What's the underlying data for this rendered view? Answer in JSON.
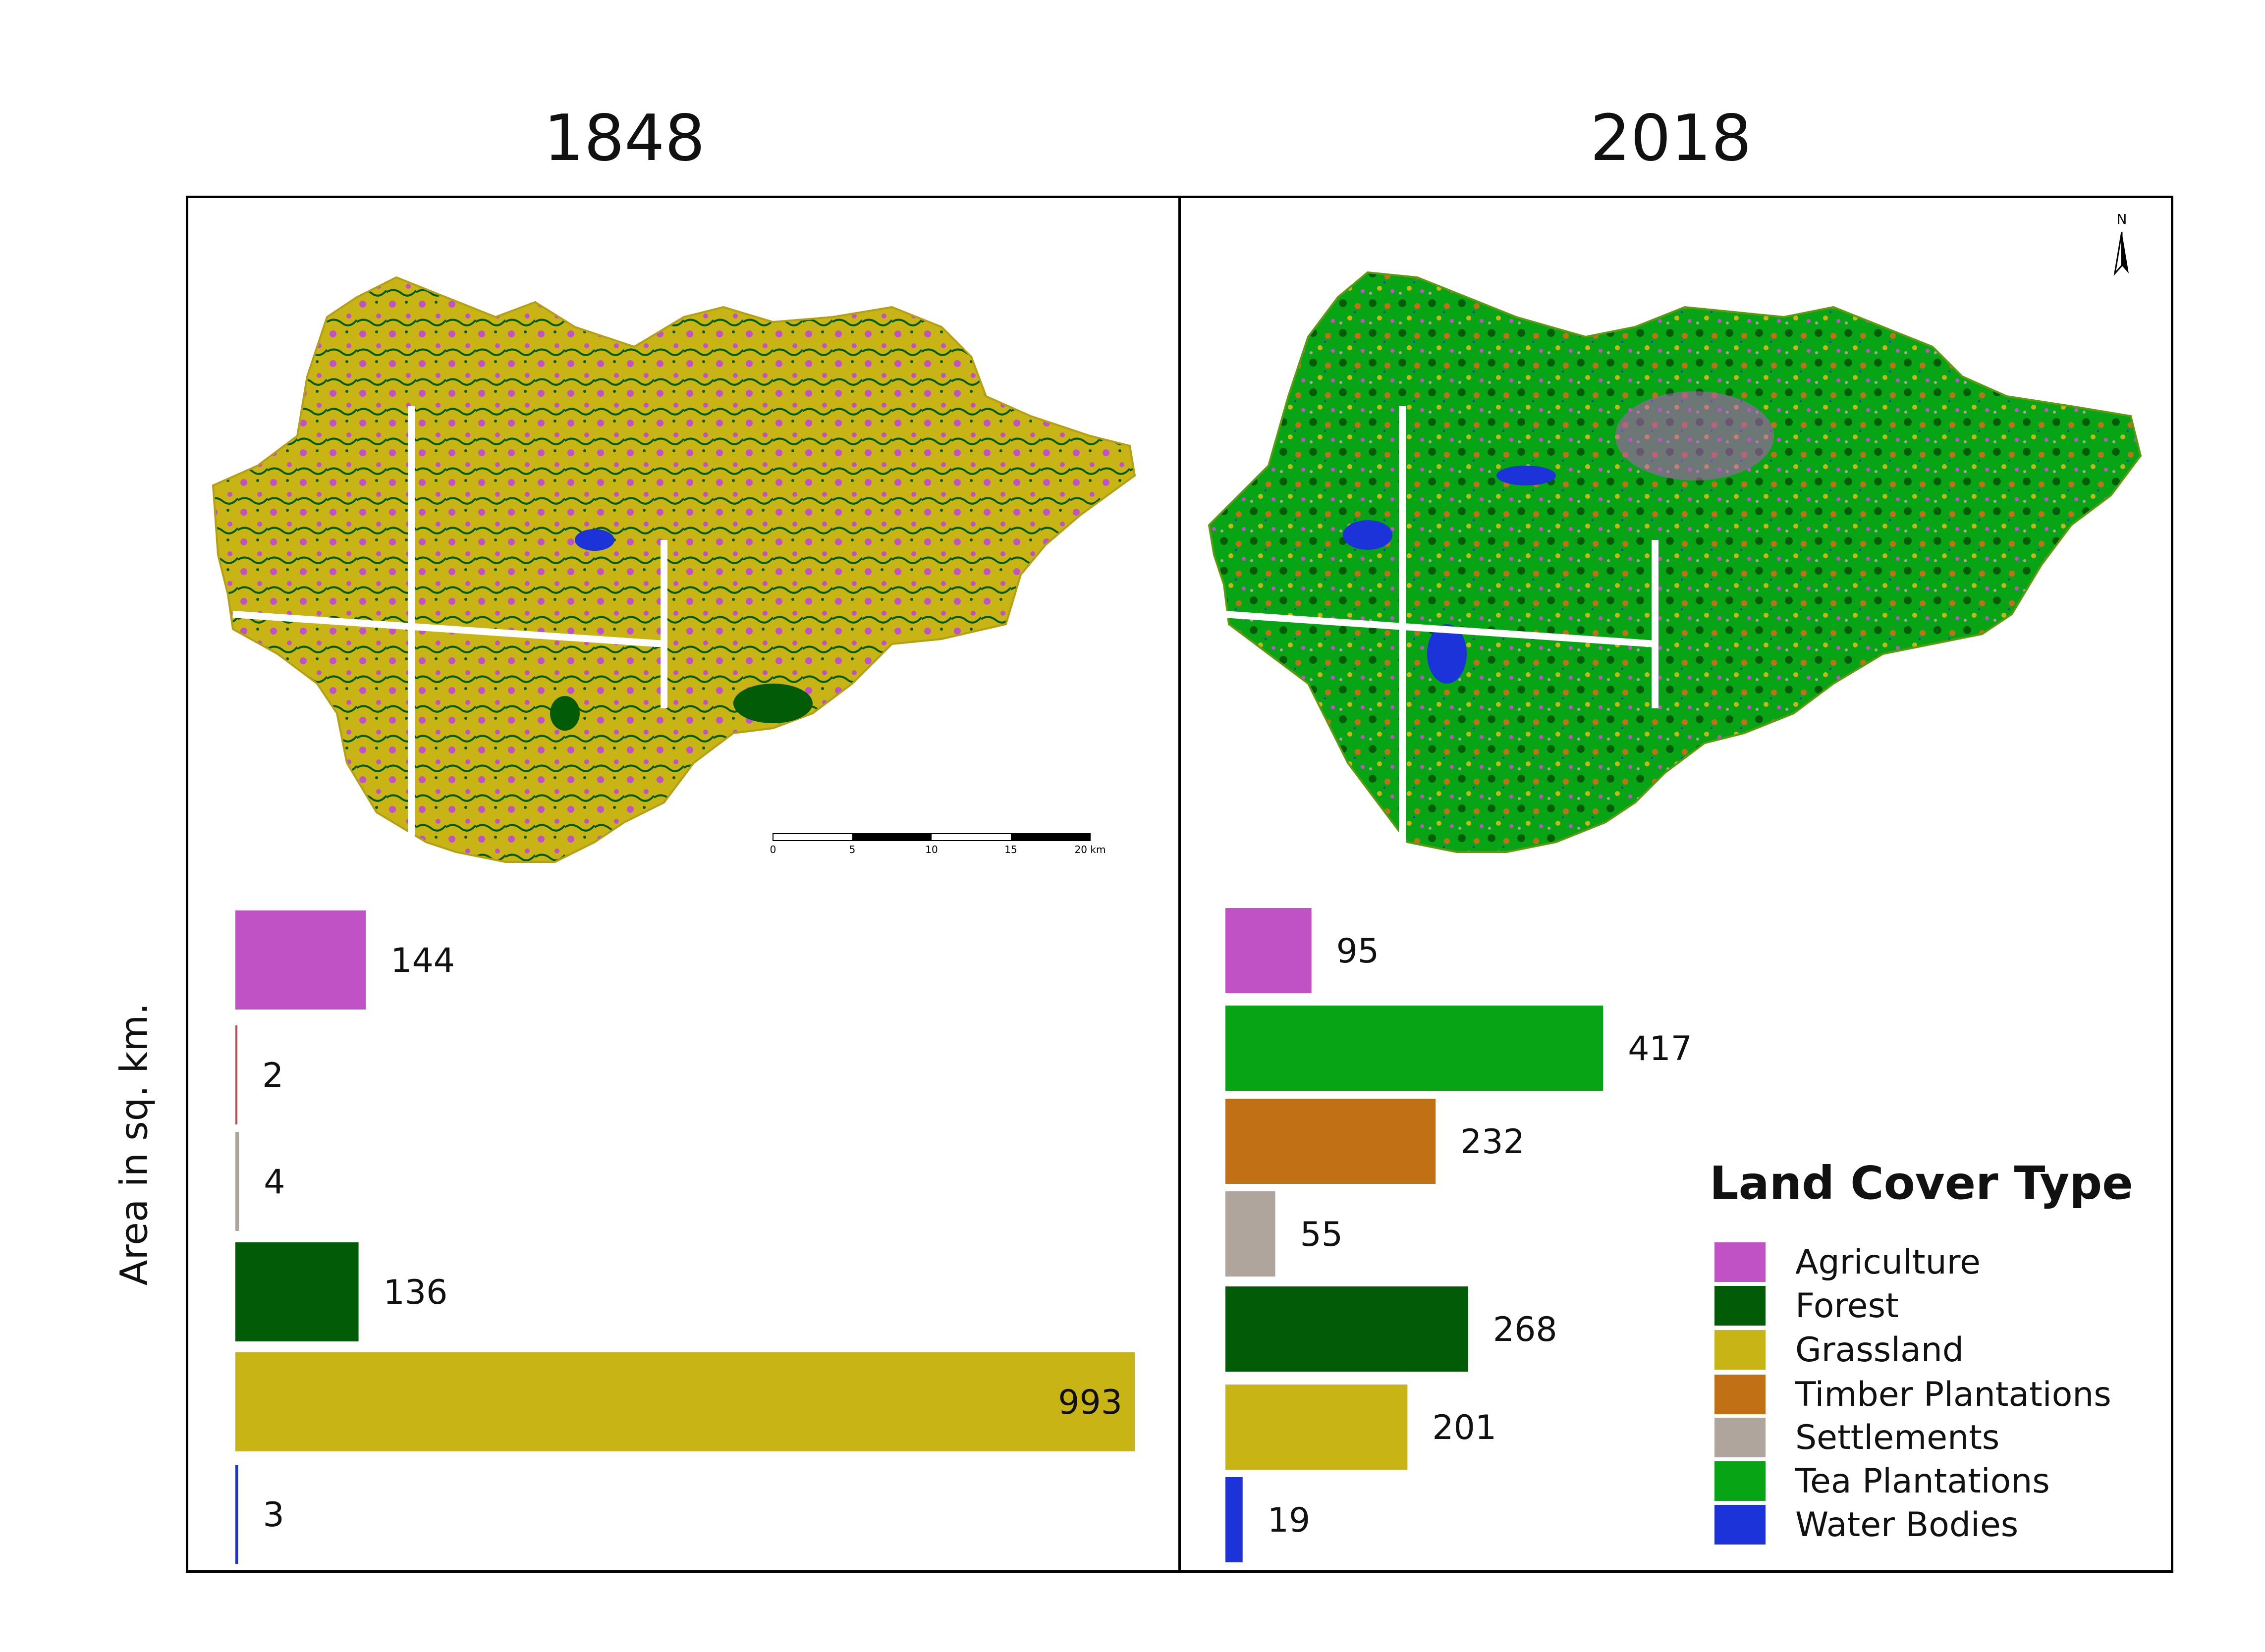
{
  "panels": [
    {
      "title": "1848"
    },
    {
      "title": "2018"
    }
  ],
  "y_axis_label": "Area in sq. km.",
  "scale_bar": {
    "ticks": [
      "0",
      "5",
      "10",
      "15",
      "20 km"
    ]
  },
  "north_arrow": {
    "label": "N"
  },
  "legend": {
    "title": "Land Cover Type",
    "items": [
      {
        "label": "Agriculture",
        "color": "#c052c6"
      },
      {
        "label": "Forest",
        "color": "#025c07"
      },
      {
        "label": "Grassland",
        "color": "#c9b416"
      },
      {
        "label": "Timber Plantations",
        "color": "#c27016"
      },
      {
        "label": "Settlements",
        "color": "#b0a59c"
      },
      {
        "label": "Tea Plantations",
        "color": "#07a516"
      },
      {
        "label": "Water Bodies",
        "color": "#1b33d8"
      }
    ]
  },
  "chart_data": [
    {
      "type": "bar",
      "orientation": "horizontal",
      "title": "1848",
      "ylabel": "Area in sq. km.",
      "xlim": [
        0,
        993
      ],
      "bars": [
        {
          "category": "Agriculture",
          "value": 144,
          "color": "#c052c6"
        },
        {
          "category": "Timber Plantations",
          "value": 2,
          "color": "#b8514f"
        },
        {
          "category": "Settlements",
          "value": 4,
          "color": "#b0a59c"
        },
        {
          "category": "Forest",
          "value": 136,
          "color": "#025c07"
        },
        {
          "category": "Grassland",
          "value": 993,
          "color": "#c9b416"
        },
        {
          "category": "Water Bodies",
          "value": 3,
          "color": "#1b33d8"
        }
      ]
    },
    {
      "type": "bar",
      "orientation": "horizontal",
      "title": "2018",
      "xlim": [
        0,
        993
      ],
      "bars": [
        {
          "category": "Agriculture",
          "value": 95,
          "color": "#c052c6"
        },
        {
          "category": "Tea Plantations",
          "value": 417,
          "color": "#07a516"
        },
        {
          "category": "Timber Plantations",
          "value": 232,
          "color": "#c27016"
        },
        {
          "category": "Settlements",
          "value": 55,
          "color": "#b0a59c"
        },
        {
          "category": "Forest",
          "value": 268,
          "color": "#025c07"
        },
        {
          "category": "Grassland",
          "value": 201,
          "color": "#c9b416"
        },
        {
          "category": "Water Bodies",
          "value": 19,
          "color": "#1b33d8"
        }
      ]
    }
  ]
}
